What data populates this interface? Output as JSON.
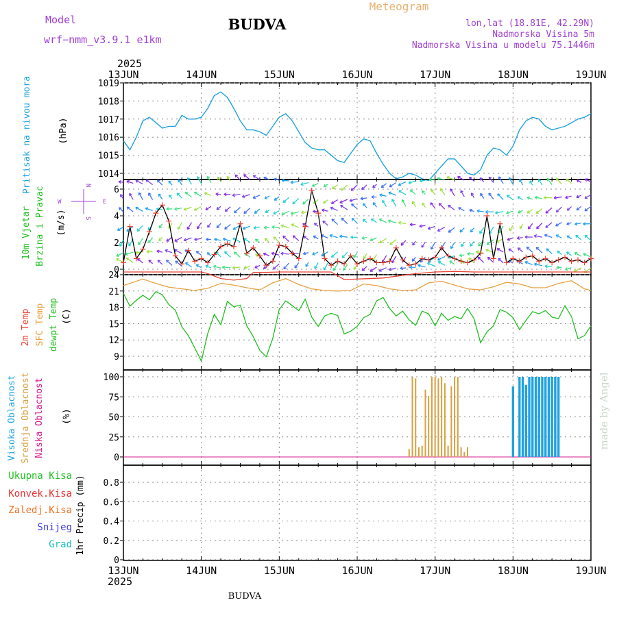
{
  "header": {
    "model_label": "Model",
    "model_name": "wrf−nmm_v3.9.1  e1km",
    "station": "BUDVA",
    "title": "Meteogram",
    "coords": "lon,lat (18.81E, 42.29N)",
    "elevation": "Nadmorska Visina 5m",
    "model_elevation": "Nadmorska Visina u modelu 75.1446m"
  },
  "axis": {
    "year": "2025",
    "dates": [
      "13JUN",
      "14JUN",
      "15JUN",
      "16JUN",
      "17JUN",
      "18JUN",
      "19JUN"
    ]
  },
  "footer": {
    "station": "BUDVA",
    "credit": "made by Angel"
  },
  "colors": {
    "pressure": "#1fa2e0",
    "wind_ylabel": "#20c020",
    "t2m": "#e84030",
    "sfc": "#e8a040",
    "dewpt": "#20c020",
    "cloud_high": "#1fa2e0",
    "cloud_mid": "#d8a040",
    "cloud_low": "#d81890",
    "total_precip": "#20c020",
    "conv_precip": "#e83030",
    "frozen_precip": "#f07020",
    "snow": "#4040e0",
    "hail": "#20c0c0",
    "model": "#a040d0"
  },
  "labels": {
    "pressure": {
      "name": "Pritisak na nivou mora",
      "unit": "(hPa)"
    },
    "wind": {
      "name1": "10m Vjetar",
      "name2": "Brzina i Pravac",
      "unit": "(m/s)",
      "compass": {
        "n": "N",
        "s": "S",
        "e": "E",
        "w": "W"
      }
    },
    "temp": {
      "t2m": "2m Temp",
      "sfc": "SFC Temp",
      "dew": "dewpt Temp",
      "unit": "(C)"
    },
    "cloud": {
      "high": "Visoka Oblacnost",
      "mid": "Srednja Oblacnost",
      "low": "Niska Oblacnost",
      "unit": "(%)"
    },
    "precip": {
      "total": "Ukupna Kisa",
      "conv": "Konvek.Kisa",
      "frozen": "Zaledj.Kisa",
      "snow": "Snijeg",
      "hail": "Grad",
      "unit": "1hr Precip (mm)"
    }
  },
  "chart_data": [
    {
      "type": "line",
      "name": "pressure",
      "x_range": [
        0,
        144
      ],
      "ylim": [
        1013,
        1019
      ],
      "yticks": [
        "1014",
        "1015",
        "1016",
        "1017",
        "1018",
        "1019"
      ],
      "series": [
        {
          "x": [
            0,
            2,
            4,
            6,
            8,
            10,
            12,
            14,
            16,
            18,
            20,
            22,
            24,
            26,
            28,
            30,
            32,
            34,
            36,
            38,
            40,
            42,
            44,
            46,
            48,
            50,
            52,
            54,
            56,
            58,
            60,
            62,
            64,
            66,
            68,
            70,
            72,
            74,
            76,
            78,
            80,
            82,
            84,
            86,
            88,
            90,
            92,
            94,
            96,
            98,
            100,
            102,
            104,
            106,
            108,
            110,
            112,
            114,
            116,
            118,
            120,
            122,
            124,
            126,
            128,
            130,
            132,
            134,
            136,
            138,
            140,
            142,
            144
          ],
          "y": [
            1015.8,
            1015.3,
            1016.0,
            1016.9,
            1017.1,
            1016.8,
            1016.5,
            1016.6,
            1016.6,
            1017.2,
            1017.0,
            1017.0,
            1017.1,
            1017.6,
            1018.3,
            1018.5,
            1018.2,
            1017.6,
            1016.9,
            1016.4,
            1016.4,
            1016.3,
            1016.1,
            1016.6,
            1017.1,
            1017.3,
            1016.9,
            1016.3,
            1015.7,
            1015.4,
            1015.3,
            1015.3,
            1015.0,
            1014.7,
            1014.6,
            1015.1,
            1015.6,
            1015.9,
            1015.8,
            1015.1,
            1014.5,
            1014.0,
            1013.7,
            1013.8,
            1014.0,
            1013.9,
            1013.7,
            1013.6,
            1014.0,
            1014.4,
            1014.8,
            1014.8,
            1014.4,
            1014.0,
            1013.9,
            1014.2,
            1015.0,
            1015.4,
            1015.3,
            1015.0,
            1015.5,
            1016.4,
            1016.9,
            1017.1,
            1017.0,
            1016.6,
            1016.4,
            1016.5,
            1016.6,
            1016.8,
            1017.0,
            1017.1,
            1017.3
          ]
        }
      ]
    },
    {
      "type": "line",
      "name": "wind_speed",
      "x_range": [
        0,
        144
      ],
      "ylim": [
        0,
        7
      ],
      "yticks": [
        "0",
        "2",
        "4",
        "6"
      ],
      "series": [
        {
          "x": [
            0,
            2,
            4,
            6,
            8,
            10,
            12,
            14,
            16,
            18,
            20,
            22,
            24,
            26,
            28,
            30,
            32,
            34,
            36,
            38,
            40,
            42,
            44,
            46,
            48,
            50,
            52,
            54,
            56,
            58,
            60,
            62,
            64,
            66,
            68,
            70,
            72,
            74,
            76,
            78,
            80,
            82,
            84,
            86,
            88,
            90,
            92,
            94,
            96,
            98,
            100,
            102,
            104,
            106,
            108,
            110,
            112,
            114,
            116,
            118,
            120,
            122,
            124,
            126,
            128,
            130,
            132,
            134,
            136,
            138,
            140,
            142,
            144
          ],
          "y": [
            0.5,
            3.2,
            0.8,
            1.5,
            2.8,
            4.2,
            4.8,
            3.6,
            1.0,
            0.4,
            1.4,
            0.6,
            0.8,
            0.5,
            1.1,
            1.7,
            1.9,
            1.7,
            3.4,
            1.2,
            1.6,
            1.0,
            0.3,
            0.6,
            1.8,
            1.7,
            1.2,
            0.8,
            3.2,
            5.9,
            4.2,
            0.8,
            0.3,
            0.6,
            0.4,
            1.0,
            0.4,
            0.6,
            0.8,
            0.5,
            0.5,
            0.6,
            1.6,
            0.7,
            0.3,
            0.4,
            0.8,
            0.7,
            0.9,
            1.6,
            1.0,
            0.8,
            0.6,
            0.5,
            0.7,
            1.2,
            4.0,
            0.8,
            3.4,
            0.5,
            0.8,
            0.6,
            0.9,
            1.0,
            0.6,
            0.8,
            0.5,
            0.7,
            0.9,
            0.6,
            0.7,
            0.5,
            0.8
          ]
        }
      ]
    },
    {
      "type": "line",
      "name": "temperatures",
      "x_range": [
        0,
        144
      ],
      "ylim": [
        7,
        24
      ],
      "yticks": [
        "9",
        "12",
        "15",
        "18",
        "21",
        "24"
      ],
      "series": [
        {
          "name": "2m Temp",
          "x": [
            0,
            24,
            26,
            30,
            34,
            38,
            40,
            42,
            48,
            64,
            68,
            72,
            80,
            90,
            96,
            102,
            108,
            120,
            144
          ],
          "y": [
            24.5,
            24.5,
            24.2,
            23.3,
            23.0,
            23.3,
            24.4,
            24.4,
            24.5,
            24.5,
            23.1,
            23.2,
            23.4,
            24.2,
            24.5,
            24.6,
            24.5,
            24.5,
            24.5
          ]
        },
        {
          "name": "SFC Temp",
          "x": [
            0,
            6,
            10,
            14,
            18,
            22,
            26,
            30,
            34,
            38,
            42,
            46,
            50,
            54,
            58,
            62,
            66,
            70,
            74,
            78,
            82,
            86,
            90,
            94,
            98,
            102,
            106,
            110,
            114,
            118,
            122,
            126,
            130,
            134,
            138,
            142,
            144
          ],
          "y": [
            22.0,
            23.2,
            22.4,
            21.7,
            21.4,
            21.1,
            21.5,
            22.4,
            22.1,
            21.6,
            21.2,
            22.5,
            23.3,
            22.2,
            21.4,
            21.1,
            21.0,
            21.1,
            22.3,
            22.0,
            21.4,
            21.1,
            21.2,
            22.5,
            22.8,
            22.1,
            21.4,
            21.2,
            21.8,
            22.6,
            22.3,
            21.6,
            21.6,
            22.4,
            22.9,
            21.4,
            21.1
          ]
        },
        {
          "name": "dewpt Temp",
          "x": [
            0,
            2,
            4,
            6,
            8,
            10,
            12,
            14,
            16,
            18,
            20,
            22,
            24,
            26,
            28,
            30,
            32,
            34,
            36,
            38,
            40,
            42,
            44,
            46,
            48,
            50,
            52,
            54,
            56,
            58,
            60,
            62,
            64,
            66,
            68,
            70,
            72,
            74,
            76,
            78,
            80,
            82,
            84,
            86,
            88,
            90,
            92,
            94,
            96,
            98,
            100,
            102,
            104,
            106,
            108,
            110,
            112,
            114,
            116,
            118,
            120,
            122,
            124,
            126,
            128,
            130,
            132,
            134,
            136,
            138,
            140,
            142,
            144
          ],
          "y": [
            20.6,
            18.2,
            19.3,
            20.2,
            19.4,
            20.9,
            20.3,
            18.5,
            17.5,
            14.4,
            12.8,
            10.5,
            8.1,
            13.2,
            16.7,
            14.8,
            19.1,
            18.1,
            18.4,
            14.6,
            12.6,
            10.1,
            8.9,
            12.3,
            17.6,
            19.2,
            18.3,
            17.4,
            19.5,
            16.2,
            14.5,
            16.4,
            16.9,
            16.5,
            13.1,
            13.6,
            14.5,
            16.1,
            16.7,
            19.2,
            19.8,
            17.8,
            16.4,
            17.3,
            15.7,
            14.7,
            17.3,
            16.8,
            14.6,
            16.9,
            15.6,
            16.3,
            15.9,
            17.8,
            15.9,
            11.5,
            13.5,
            14.6,
            17.6,
            17.1,
            16.1,
            13.9,
            15.6,
            17.2,
            16.8,
            17.4,
            16.2,
            15.9,
            18.3,
            16.3,
            12.2,
            12.8,
            14.6
          ]
        }
      ]
    },
    {
      "type": "bar",
      "name": "cloud_cover",
      "x_range": [
        0,
        144
      ],
      "ylim": [
        0,
        100
      ],
      "yticks": [
        "0",
        "25",
        "50",
        "75",
        "100"
      ],
      "series": [
        {
          "name": "Srednja Oblacnost",
          "x": [
            88,
            89,
            90,
            91,
            92,
            93,
            94,
            95,
            96,
            97,
            98,
            99,
            100,
            101,
            102,
            103,
            104,
            105,
            106
          ],
          "values": [
            10,
            100,
            98,
            12,
            14,
            84,
            76,
            100,
            100,
            98,
            100,
            92,
            14,
            88,
            100,
            100,
            12,
            6,
            12
          ]
        },
        {
          "name": "Visoka Oblacnost",
          "x": [
            120,
            121,
            122,
            123,
            124,
            125,
            126,
            127,
            128,
            129,
            130,
            131,
            132,
            133,
            134
          ],
          "values": [
            88,
            0,
            100,
            100,
            90,
            100,
            100,
            100,
            100,
            100,
            100,
            100,
            100,
            100,
            100
          ]
        },
        {
          "name": "Niska Oblacnost",
          "x": [
            0,
            144
          ],
          "values": [
            0,
            0
          ]
        }
      ]
    },
    {
      "type": "bar",
      "name": "precipitation",
      "x_range": [
        0,
        144
      ],
      "ylim": [
        0,
        1
      ],
      "yticks": [
        "0",
        "0.2",
        "0.4",
        "0.6",
        "0.8"
      ],
      "series": [
        {
          "name": "Ukupna Kisa",
          "x": [
            0,
            144
          ],
          "values": [
            0,
            0
          ]
        }
      ]
    }
  ]
}
